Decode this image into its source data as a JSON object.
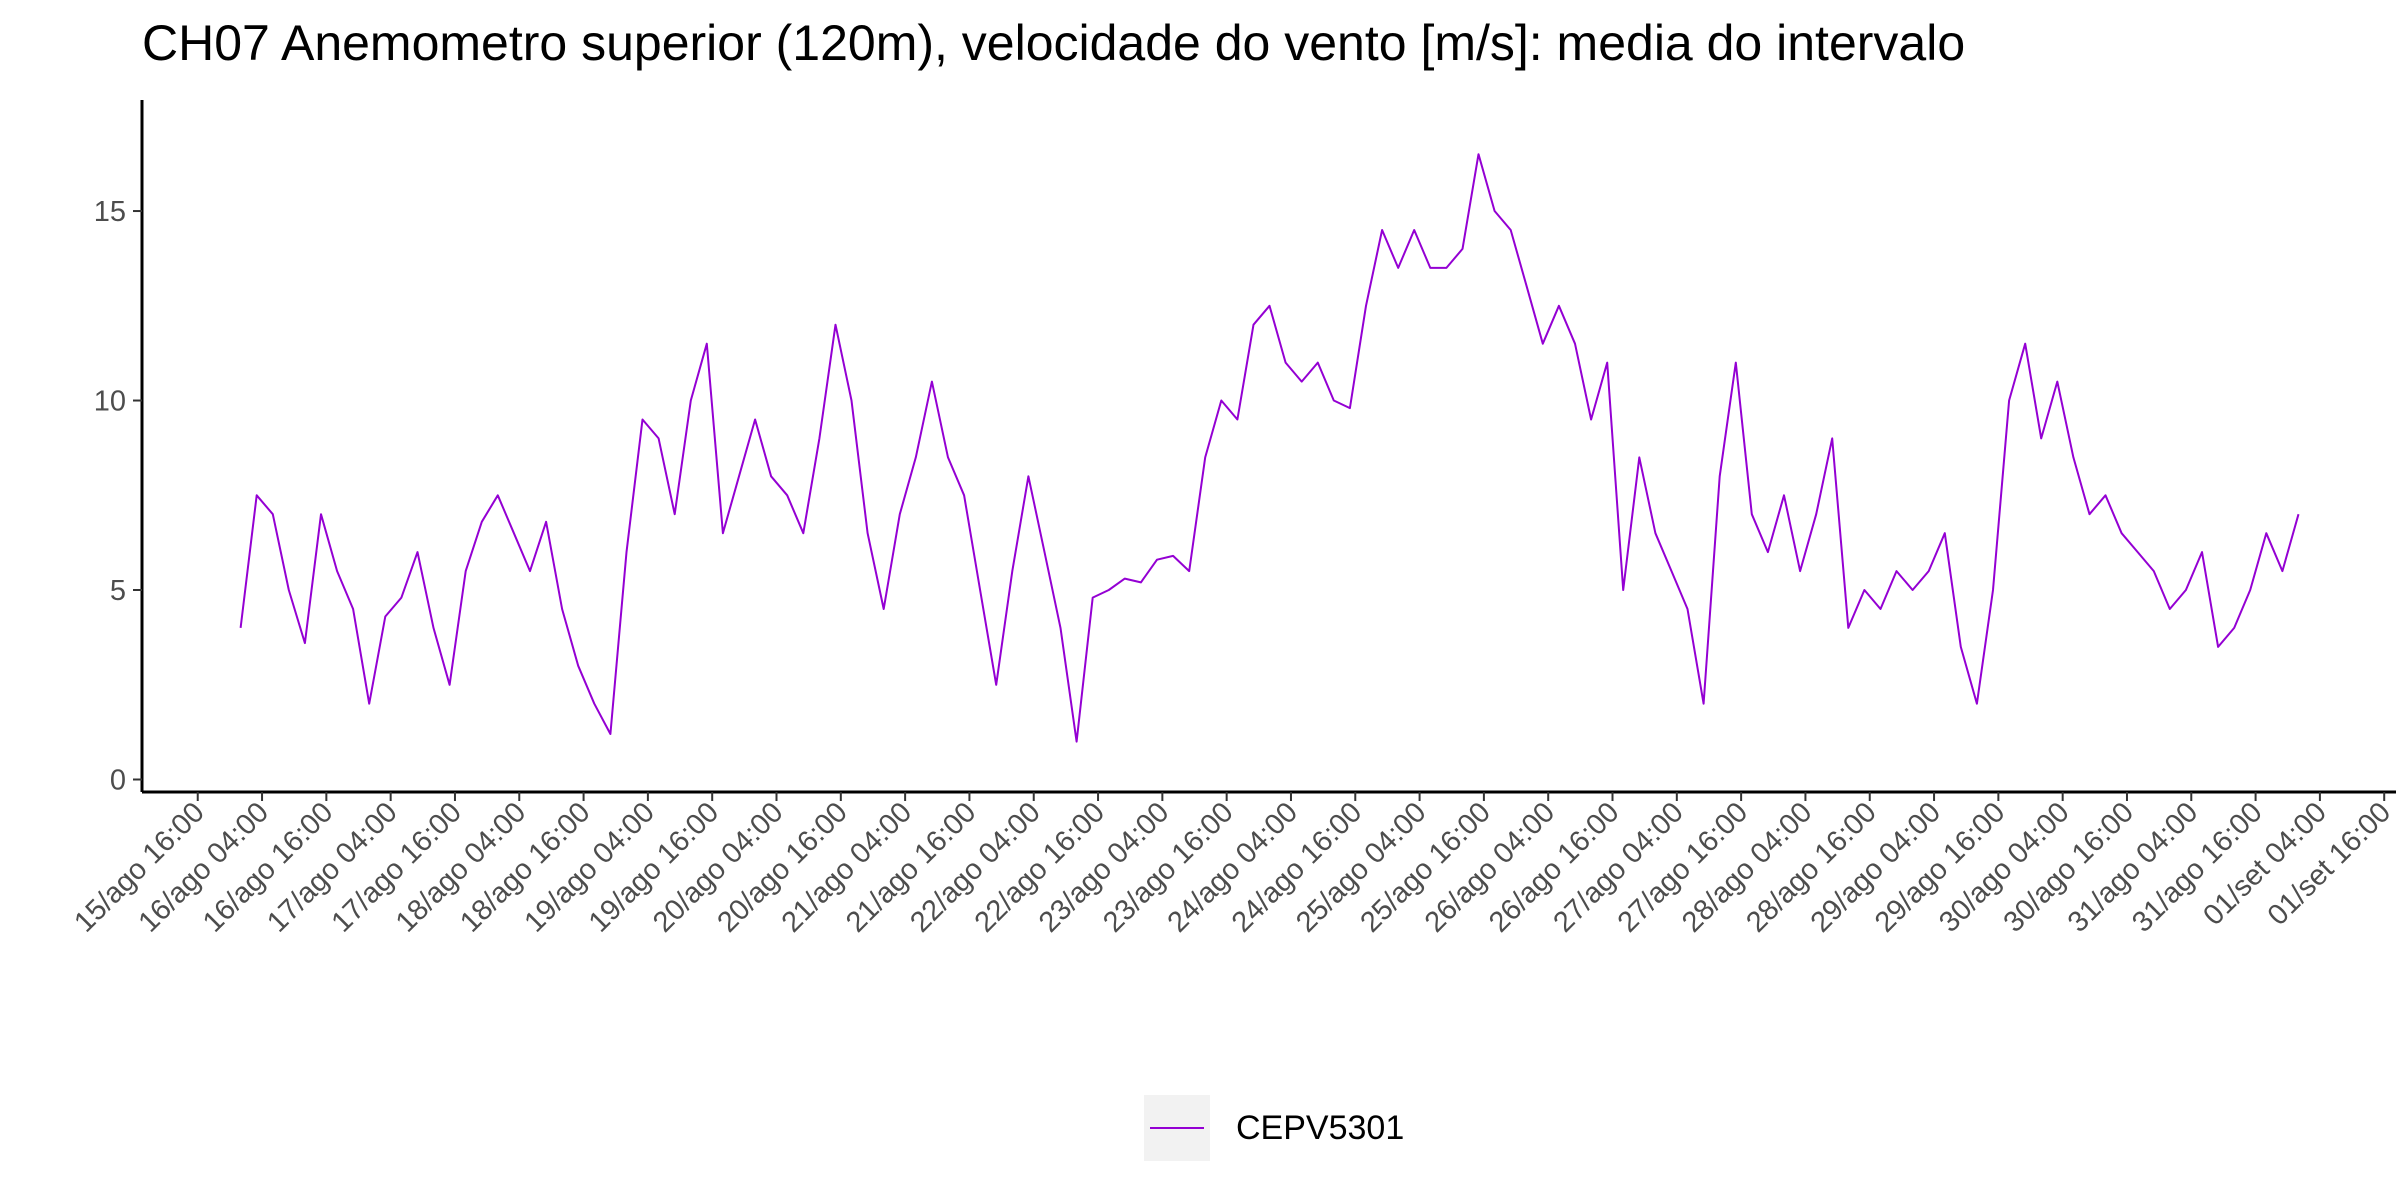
{
  "chart_data": {
    "type": "line",
    "title": "CH07 Anemometro superior (120m), velocidade do vento [m/s]: media do intervalo",
    "x": [
      "16/ago 00:00",
      "16/ago 03:00",
      "16/ago 06:00",
      "16/ago 09:00",
      "16/ago 12:00",
      "16/ago 15:00",
      "16/ago 18:00",
      "16/ago 21:00",
      "17/ago 00:00",
      "17/ago 03:00",
      "17/ago 06:00",
      "17/ago 09:00",
      "17/ago 12:00",
      "17/ago 15:00",
      "17/ago 18:00",
      "17/ago 21:00",
      "18/ago 00:00",
      "18/ago 03:00",
      "18/ago 06:00",
      "18/ago 09:00",
      "18/ago 12:00",
      "18/ago 15:00",
      "18/ago 18:00",
      "18/ago 21:00",
      "19/ago 00:00",
      "19/ago 03:00",
      "19/ago 06:00",
      "19/ago 09:00",
      "19/ago 12:00",
      "19/ago 15:00",
      "19/ago 18:00",
      "19/ago 21:00",
      "20/ago 00:00",
      "20/ago 03:00",
      "20/ago 06:00",
      "20/ago 09:00",
      "20/ago 12:00",
      "20/ago 15:00",
      "20/ago 18:00",
      "20/ago 21:00",
      "21/ago 00:00",
      "21/ago 03:00",
      "21/ago 06:00",
      "21/ago 09:00",
      "21/ago 12:00",
      "21/ago 15:00",
      "21/ago 18:00",
      "21/ago 21:00",
      "22/ago 00:00",
      "22/ago 03:00",
      "22/ago 06:00",
      "22/ago 09:00",
      "22/ago 12:00",
      "22/ago 15:00",
      "22/ago 18:00",
      "22/ago 21:00",
      "23/ago 00:00",
      "23/ago 03:00",
      "23/ago 06:00",
      "23/ago 09:00",
      "23/ago 12:00",
      "23/ago 15:00",
      "23/ago 18:00",
      "23/ago 21:00",
      "24/ago 00:00",
      "24/ago 03:00",
      "24/ago 06:00",
      "24/ago 09:00",
      "24/ago 12:00",
      "24/ago 15:00",
      "24/ago 18:00",
      "24/ago 21:00",
      "25/ago 00:00",
      "25/ago 03:00",
      "25/ago 06:00",
      "25/ago 09:00",
      "25/ago 12:00",
      "25/ago 15:00",
      "25/ago 18:00",
      "25/ago 21:00",
      "26/ago 00:00",
      "26/ago 03:00",
      "26/ago 06:00",
      "26/ago 09:00",
      "26/ago 12:00",
      "26/ago 15:00",
      "26/ago 18:00",
      "26/ago 21:00",
      "27/ago 00:00",
      "27/ago 03:00",
      "27/ago 06:00",
      "27/ago 09:00",
      "27/ago 12:00",
      "27/ago 15:00",
      "27/ago 18:00",
      "27/ago 21:00",
      "28/ago 00:00",
      "28/ago 03:00",
      "28/ago 06:00",
      "28/ago 09:00",
      "28/ago 12:00",
      "28/ago 15:00",
      "28/ago 18:00",
      "28/ago 21:00",
      "29/ago 00:00",
      "29/ago 03:00",
      "29/ago 06:00",
      "29/ago 09:00",
      "29/ago 12:00",
      "29/ago 15:00",
      "29/ago 18:00",
      "29/ago 21:00",
      "30/ago 00:00",
      "30/ago 03:00",
      "30/ago 06:00",
      "30/ago 09:00",
      "30/ago 12:00",
      "30/ago 15:00",
      "30/ago 18:00",
      "30/ago 21:00",
      "31/ago 00:00",
      "31/ago 03:00",
      "31/ago 06:00",
      "31/ago 09:00",
      "31/ago 12:00",
      "31/ago 15:00",
      "31/ago 18:00",
      "31/ago 21:00",
      "01/set 00:00"
    ],
    "series": [
      {
        "name": "CEPV5301",
        "color": "#9400d3",
        "values": [
          4.0,
          7.5,
          7.0,
          5.0,
          3.6,
          7.0,
          5.5,
          4.5,
          2.0,
          4.3,
          4.8,
          6.0,
          4.0,
          2.5,
          5.5,
          6.8,
          7.5,
          6.5,
          5.5,
          6.8,
          4.5,
          3.0,
          2.0,
          1.2,
          6.0,
          9.5,
          9.0,
          7.0,
          10.0,
          11.5,
          6.5,
          8.0,
          9.5,
          8.0,
          7.5,
          6.5,
          9.0,
          12.0,
          10.0,
          6.5,
          4.5,
          7.0,
          8.5,
          10.5,
          8.5,
          7.5,
          5.0,
          2.5,
          5.5,
          8.0,
          6.0,
          4.0,
          1.0,
          4.8,
          5.0,
          5.3,
          5.2,
          5.8,
          5.9,
          5.5,
          8.5,
          10.0,
          9.5,
          12.0,
          12.5,
          11.0,
          10.5,
          11.0,
          10.0,
          9.8,
          12.5,
          14.5,
          13.5,
          14.5,
          13.5,
          13.5,
          14.0,
          16.5,
          15.0,
          14.5,
          13.0,
          11.5,
          12.5,
          11.5,
          9.5,
          11.0,
          5.0,
          8.5,
          6.5,
          5.5,
          4.5,
          2.0,
          8.0,
          11.0,
          7.0,
          6.0,
          7.5,
          5.5,
          7.0,
          9.0,
          4.0,
          5.0,
          4.5,
          5.5,
          5.0,
          5.5,
          6.5,
          3.5,
          2.0,
          5.0,
          10.0,
          11.5,
          9.0,
          10.5,
          8.5,
          7.0,
          7.5,
          6.5,
          6.0,
          5.5,
          4.5,
          5.0,
          6.0,
          3.5,
          4.0,
          5.0,
          6.5,
          5.5,
          7.0
        ]
      }
    ],
    "xlim": [
      "15/ago 05:36",
      "01/set 18:12"
    ],
    "xticks": [
      "15/ago 16:00",
      "16/ago 04:00",
      "16/ago 16:00",
      "17/ago 04:00",
      "17/ago 16:00",
      "18/ago 04:00",
      "18/ago 16:00",
      "19/ago 04:00",
      "19/ago 16:00",
      "20/ago 04:00",
      "20/ago 16:00",
      "21/ago 04:00",
      "21/ago 16:00",
      "22/ago 04:00",
      "22/ago 16:00",
      "23/ago 04:00",
      "23/ago 16:00",
      "24/ago 04:00",
      "24/ago 16:00",
      "25/ago 04:00",
      "25/ago 16:00",
      "26/ago 04:00",
      "26/ago 16:00",
      "27/ago 04:00",
      "27/ago 16:00",
      "28/ago 04:00",
      "28/ago 16:00",
      "29/ago 04:00",
      "29/ago 16:00",
      "30/ago 04:00",
      "30/ago 16:00",
      "31/ago 04:00",
      "31/ago 16:00",
      "01/set 04:00",
      "01/set 16:00"
    ],
    "ylim": [
      -0.33,
      17.93
    ],
    "yticks": [
      0,
      5,
      10,
      15
    ],
    "grid": false,
    "legend": "bottom"
  }
}
